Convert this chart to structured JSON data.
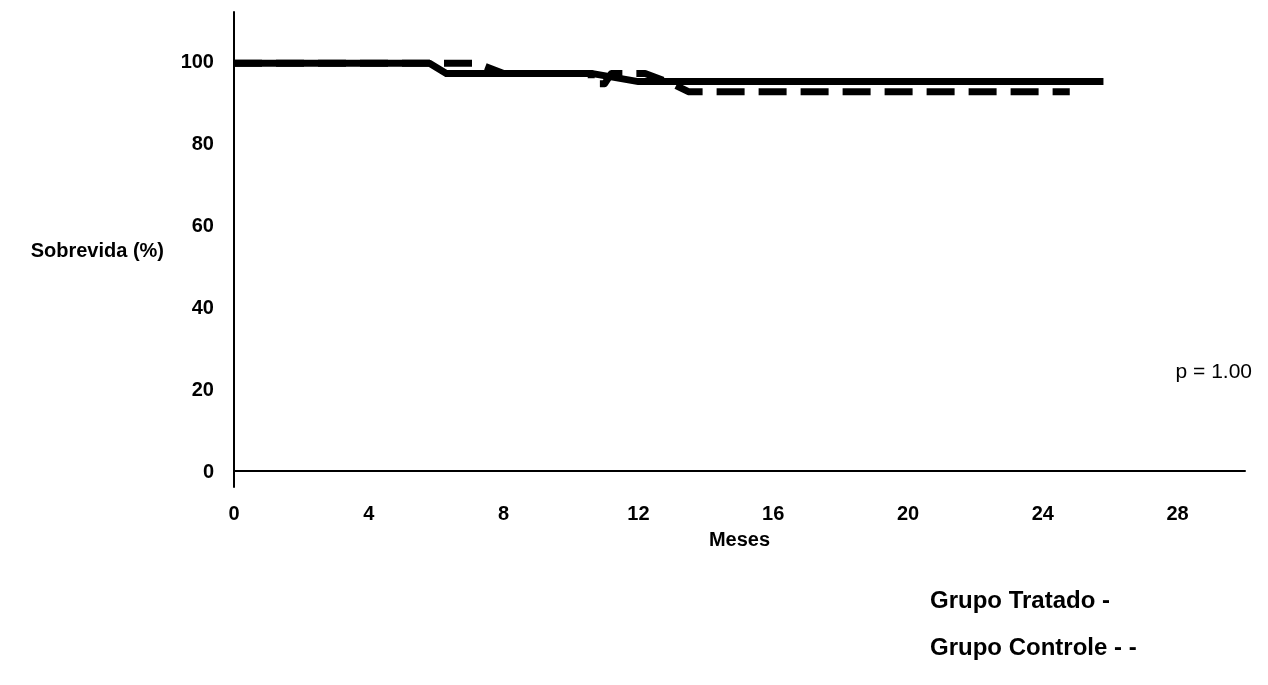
{
  "chart_data": {
    "type": "line",
    "xlabel": "Meses",
    "ylabel": "Sobrevida (%)",
    "xlim": [
      0,
      30
    ],
    "xticks": [
      0,
      4,
      8,
      12,
      16,
      20,
      24,
      28
    ],
    "ylim": [
      -4,
      112
    ],
    "yticks": [
      0,
      20,
      40,
      60,
      80,
      100
    ],
    "grid": false,
    "marker": "none",
    "series": [
      {
        "color": "#000000",
        "line_style": "solid",
        "x": [
          0,
          5.8,
          6.3,
          10.6,
          12,
          25.8
        ],
        "values": [
          99.5,
          99.5,
          97,
          97,
          95,
          95
        ]
      },
      {
        "color": "#000000",
        "line_style": "dashed",
        "x": [
          0,
          7.2,
          8,
          10.6,
          10.6,
          11,
          11.2,
          12.2,
          13,
          13.5,
          24.8
        ],
        "values": [
          99.5,
          99.5,
          97,
          97,
          94.5,
          94.5,
          97,
          97,
          94.5,
          92.5,
          92.5
        ]
      }
    ],
    "annotations": [
      "p = 1.00",
      "Grupo Tratado -",
      "Grupo Controle - -"
    ]
  }
}
